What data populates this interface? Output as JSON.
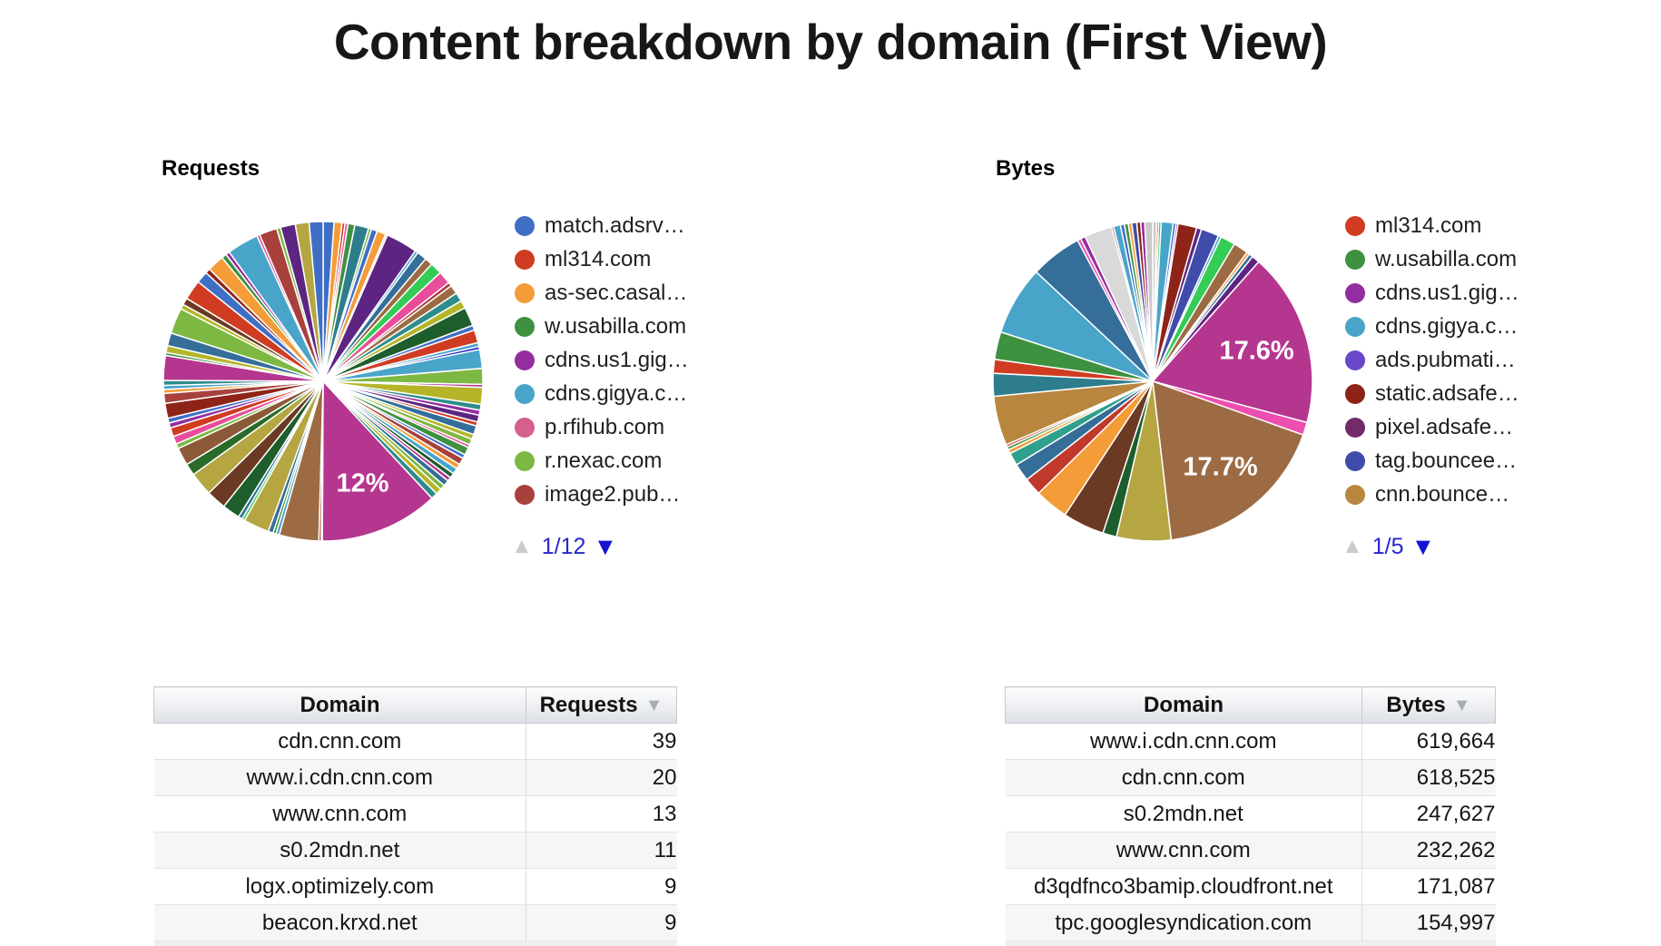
{
  "page": {
    "title": "Content breakdown by domain (First View)"
  },
  "chart_data": [
    {
      "type": "pie",
      "title": "Requests",
      "legend_position": "right",
      "pager": {
        "up_icon": "▲",
        "label": "1/12",
        "down_icon": "▼"
      },
      "legend": [
        {
          "label": "match.adsrv…",
          "color": "#3f6fc5"
        },
        {
          "label": "ml314.com",
          "color": "#cf3c22"
        },
        {
          "label": "as-sec.casal…",
          "color": "#f39c38"
        },
        {
          "label": "w.usabilla.com",
          "color": "#3d9140"
        },
        {
          "label": "cdns.us1.gig…",
          "color": "#942da0"
        },
        {
          "label": "cdns.gigya.c…",
          "color": "#49a4c9"
        },
        {
          "label": "p.rfihub.com",
          "color": "#d55f8d"
        },
        {
          "label": "r.nexac.com",
          "color": "#7db843"
        },
        {
          "label": "image2.pub…",
          "color": "#a8413c"
        }
      ],
      "slices": [
        [
          1.1,
          "#3f6fc5"
        ],
        [
          0.8,
          "#f39c38"
        ],
        [
          0.3,
          "#cf3c22"
        ],
        [
          0.3,
          "#e84d9a"
        ],
        [
          0.7,
          "#3d9140"
        ],
        [
          1.4,
          "#2e7d8c"
        ],
        [
          0.3,
          "#7db843"
        ],
        [
          0.6,
          "#3f6fc5"
        ],
        [
          0.9,
          "#f39c38"
        ],
        [
          0.2,
          "#d0d0d0"
        ],
        [
          3.2,
          "#5e2482"
        ],
        [
          0.3,
          "#49a4c9"
        ],
        [
          1.0,
          "#356e99"
        ],
        [
          0.8,
          "#9c6b43"
        ],
        [
          1.2,
          "#33cc55"
        ],
        [
          1.3,
          "#e84d9a"
        ],
        [
          0.4,
          "#a8413c"
        ],
        [
          0.9,
          "#9c6b43"
        ],
        [
          0.9,
          "#2e8c8c"
        ],
        [
          0.8,
          "#b5b52a"
        ],
        [
          1.9,
          "#1d5e2c"
        ],
        [
          0.5,
          "#3f6fc5"
        ],
        [
          1.3,
          "#cf3c22"
        ],
        [
          0.4,
          "#49a4c9"
        ],
        [
          0.3,
          "#2222cc"
        ],
        [
          1.9,
          "#49a4c9"
        ],
        [
          1.6,
          "#7db843"
        ],
        [
          0.3,
          "#b5368f"
        ],
        [
          1.7,
          "#b5b52a"
        ],
        [
          0.6,
          "#2e8c8c"
        ],
        [
          0.5,
          "#942da0"
        ],
        [
          0.7,
          "#5e2482"
        ],
        [
          0.4,
          "#cf3c22"
        ],
        [
          0.9,
          "#356e99"
        ],
        [
          0.5,
          "#b5b52a"
        ],
        [
          0.6,
          "#7db843"
        ],
        [
          0.3,
          "#e84d9a"
        ],
        [
          0.8,
          "#3d9140"
        ],
        [
          0.4,
          "#3f6fc5"
        ],
        [
          0.7,
          "#a8413c"
        ],
        [
          0.5,
          "#f39c38"
        ],
        [
          0.6,
          "#49a4c9"
        ],
        [
          0.5,
          "#1d5e2c"
        ],
        [
          0.4,
          "#b5368f"
        ],
        [
          0.6,
          "#356e99"
        ],
        [
          0.5,
          "#7db843"
        ],
        [
          0.6,
          "#b5b52a"
        ],
        [
          0.66,
          "#2e8c8c"
        ],
        [
          12.0,
          "#b5368f",
          "12%"
        ],
        [
          0.1,
          "#d8d8d8"
        ],
        [
          0.25,
          "#a8413c"
        ],
        [
          4.0,
          "#9c6b43"
        ],
        [
          0.35,
          "#49a4c9"
        ],
        [
          0.3,
          "#3d9140"
        ],
        [
          0.5,
          "#356e99"
        ],
        [
          2.6,
          "#b5a642"
        ],
        [
          0.3,
          "#33cc55"
        ],
        [
          0.4,
          "#356e99"
        ],
        [
          1.8,
          "#1d5e2c"
        ],
        [
          2.0,
          "#6b3a22"
        ],
        [
          2.4,
          "#b5a642"
        ],
        [
          1.2,
          "#2a6b2a"
        ],
        [
          1.8,
          "#8c5a38"
        ],
        [
          0.5,
          "#7db843"
        ],
        [
          0.8,
          "#e84d9a"
        ],
        [
          0.9,
          "#cf3c22"
        ],
        [
          0.5,
          "#942da0"
        ],
        [
          0.5,
          "#3f6fc5"
        ],
        [
          1.5,
          "#8e2318"
        ],
        [
          1.0,
          "#a8413c"
        ],
        [
          0.4,
          "#f39c38"
        ],
        [
          0.4,
          "#49a4c9"
        ],
        [
          0.5,
          "#2e8c8c"
        ],
        [
          2.5,
          "#b5368f"
        ],
        [
          0.3,
          "#3d9140"
        ],
        [
          0.7,
          "#b5b52a"
        ],
        [
          1.3,
          "#356e99"
        ],
        [
          2.6,
          "#7db843"
        ],
        [
          0.5,
          "#b5b52a"
        ],
        [
          0.7,
          "#6b3a22"
        ],
        [
          2.0,
          "#cf3c22"
        ],
        [
          1.2,
          "#3f6fc5"
        ],
        [
          0.5,
          "#8e2318"
        ],
        [
          1.7,
          "#f39c38"
        ],
        [
          0.5,
          "#3d9140"
        ],
        [
          0.4,
          "#942da0"
        ],
        [
          3.2,
          "#49a4c9"
        ],
        [
          0.3,
          "#e84d9a"
        ],
        [
          1.8,
          "#a8413c"
        ],
        [
          0.4,
          "#7db843"
        ],
        [
          1.5,
          "#5e2482"
        ],
        [
          1.4,
          "#b5a642"
        ],
        [
          1.4,
          "#3f6fc5"
        ]
      ]
    },
    {
      "type": "pie",
      "title": "Bytes",
      "legend_position": "right",
      "pager": {
        "up_icon": "▲",
        "label": "1/5",
        "down_icon": "▼"
      },
      "legend": [
        {
          "label": "ml314.com",
          "color": "#cf3c22"
        },
        {
          "label": "w.usabilla.com",
          "color": "#3d9140"
        },
        {
          "label": "cdns.us1.gig…",
          "color": "#942da0"
        },
        {
          "label": "cdns.gigya.c…",
          "color": "#49a4c9"
        },
        {
          "label": "ads.pubmati…",
          "color": "#6a46c8"
        },
        {
          "label": "static.adsafe…",
          "color": "#8e2318"
        },
        {
          "label": "pixel.adsafe…",
          "color": "#722a68"
        },
        {
          "label": "tag.bouncee…",
          "color": "#3f4cab"
        },
        {
          "label": "cnn.bounce…",
          "color": "#b8863e"
        }
      ],
      "slices": [
        [
          0.4,
          "#c9c9c9"
        ],
        [
          0.2,
          "#cf3c22"
        ],
        [
          0.25,
          "#33cc55"
        ],
        [
          1.2,
          "#49a4c9"
        ],
        [
          0.3,
          "#3f6fc5"
        ],
        [
          0.2,
          "#942da0"
        ],
        [
          1.9,
          "#8e2318"
        ],
        [
          0.5,
          "#5e2482"
        ],
        [
          1.8,
          "#3f4cab"
        ],
        [
          0.3,
          "#49a4c9"
        ],
        [
          1.5,
          "#33cc55"
        ],
        [
          1.5,
          "#9c6b43"
        ],
        [
          0.3,
          "#f39c38"
        ],
        [
          0.4,
          "#356e99"
        ],
        [
          0.8,
          "#5e2482"
        ],
        [
          17.6,
          "#b5368f",
          "17.6%"
        ],
        [
          1.3,
          "#ee4fae"
        ],
        [
          17.7,
          "#9c6b43",
          "17.7%"
        ],
        [
          5.5,
          "#b5a642"
        ],
        [
          1.4,
          "#1d5e2c"
        ],
        [
          4.2,
          "#6b3a22"
        ],
        [
          3.4,
          "#f39c38"
        ],
        [
          1.8,
          "#c0392b"
        ],
        [
          1.8,
          "#356e99"
        ],
        [
          1.3,
          "#2ea08c"
        ],
        [
          0.4,
          "#f39c38"
        ],
        [
          0.3,
          "#3d9140"
        ],
        [
          0.25,
          "#cf3c22"
        ],
        [
          5.0,
          "#b8863e"
        ],
        [
          2.3,
          "#2e7d8c"
        ],
        [
          1.4,
          "#cf3c22"
        ],
        [
          2.8,
          "#3d9140"
        ],
        [
          7.0,
          "#49a4c9"
        ],
        [
          5.2,
          "#356e99"
        ],
        [
          0.35,
          "#ee4fae"
        ],
        [
          0.5,
          "#942da0"
        ],
        [
          2.8,
          "#d9d9d9"
        ],
        [
          0.2,
          "#b5368f"
        ],
        [
          0.7,
          "#49a4c9"
        ],
        [
          0.4,
          "#3f6fc5"
        ],
        [
          0.4,
          "#3d9140"
        ],
        [
          0.35,
          "#f39c38"
        ],
        [
          0.5,
          "#3f4cab"
        ],
        [
          0.4,
          "#8e2318"
        ],
        [
          0.4,
          "#942da0"
        ],
        [
          0.8,
          "#c9c9c9"
        ]
      ]
    }
  ],
  "tables": [
    {
      "columns": [
        "Domain",
        "Requests"
      ],
      "sort_icon": "▼",
      "rows": [
        [
          "cdn.cnn.com",
          "39"
        ],
        [
          "www.i.cdn.cnn.com",
          "20"
        ],
        [
          "www.cnn.com",
          "13"
        ],
        [
          "s0.2mdn.net",
          "11"
        ],
        [
          "logx.optimizely.com",
          "9"
        ],
        [
          "beacon.krxd.net",
          "9"
        ]
      ]
    },
    {
      "columns": [
        "Domain",
        "Bytes"
      ],
      "sort_icon": "▼",
      "rows": [
        [
          "www.i.cdn.cnn.com",
          "619,664"
        ],
        [
          "cdn.cnn.com",
          "618,525"
        ],
        [
          "s0.2mdn.net",
          "247,627"
        ],
        [
          "www.cnn.com",
          "232,262"
        ],
        [
          "d3qdfnco3bamip.cloudfront.net",
          "171,087"
        ],
        [
          "tpc.googlesyndication.com",
          "154,997"
        ]
      ]
    }
  ]
}
